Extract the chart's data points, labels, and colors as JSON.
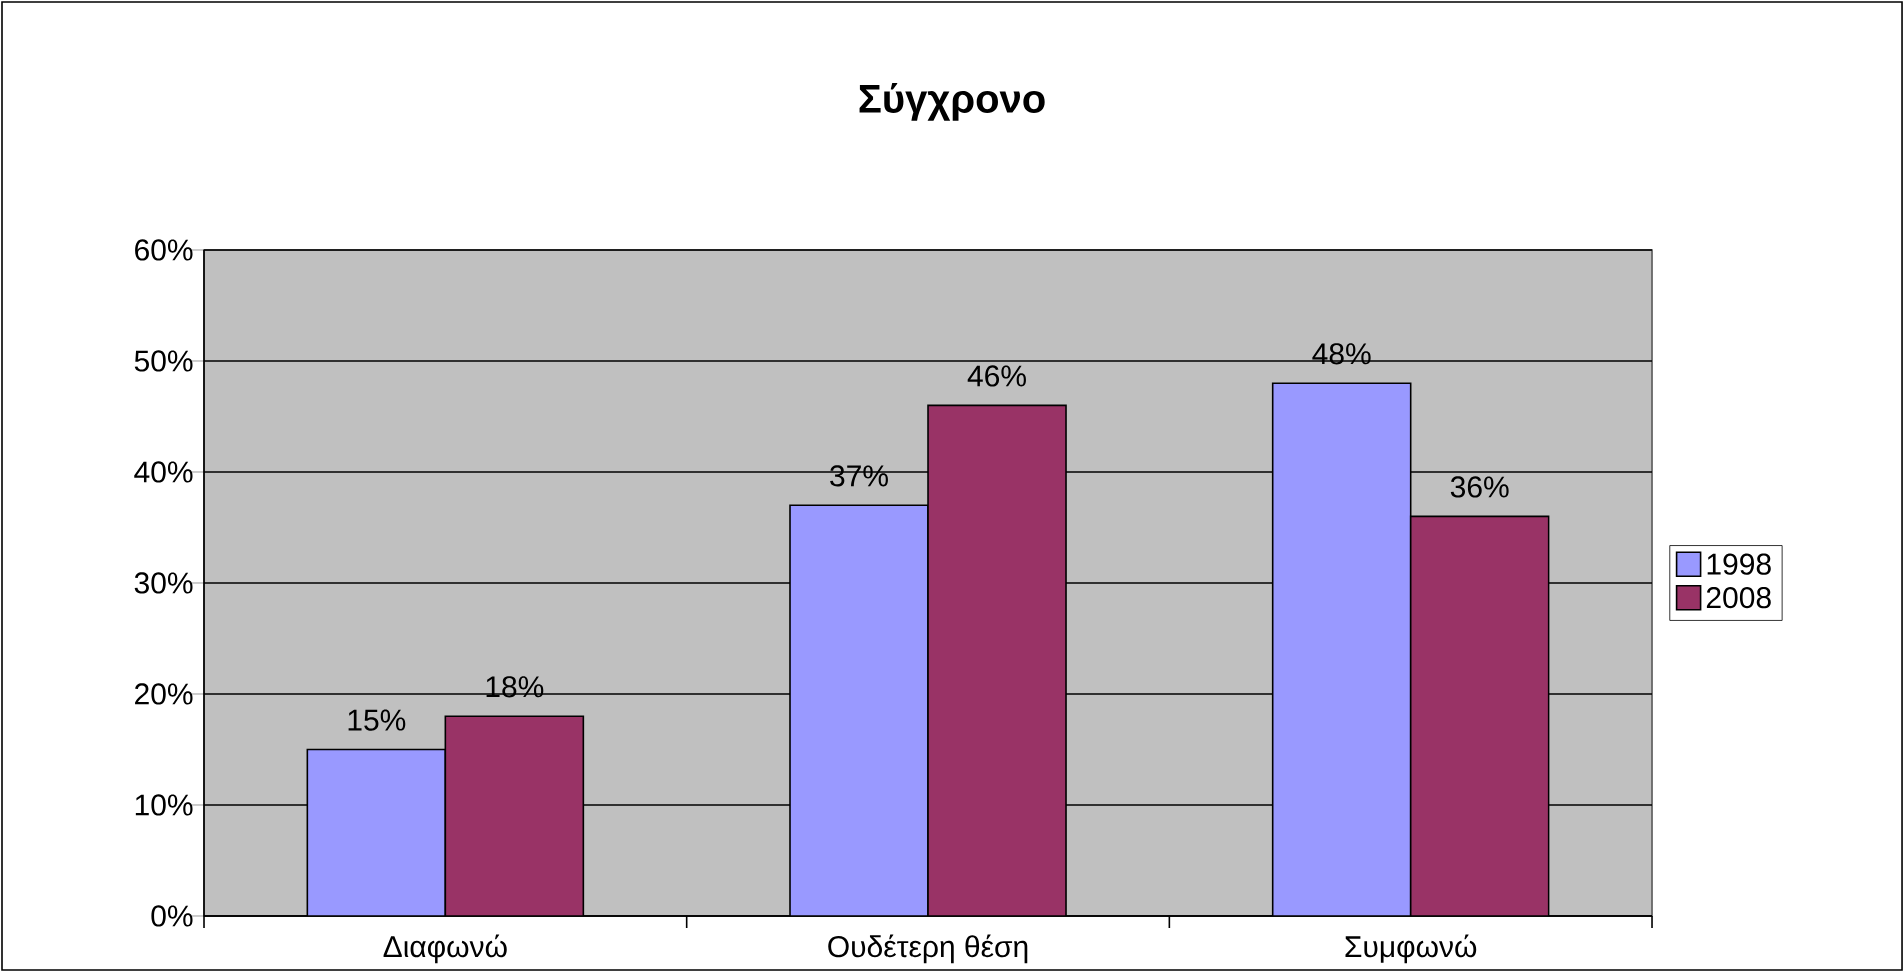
{
  "chart_data": {
    "type": "bar",
    "title": "Σύγχρονο",
    "categories": [
      "Διαφωνώ",
      "Ουδέτερη θέση",
      "Συμφωνώ"
    ],
    "series": [
      {
        "name": "1998",
        "color": "#9999ff",
        "values": [
          15,
          37,
          48
        ],
        "value_labels": [
          "15%",
          "37%",
          "48%"
        ]
      },
      {
        "name": "2008",
        "color": "#993366",
        "values": [
          18,
          46,
          36
        ],
        "value_labels": [
          "18%",
          "46%",
          "36%"
        ]
      }
    ],
    "ylim": [
      0,
      60
    ],
    "yticks": [
      {
        "value": 0,
        "label": "0%"
      },
      {
        "value": 10,
        "label": "10%"
      },
      {
        "value": 20,
        "label": "20%"
      },
      {
        "value": 30,
        "label": "30%"
      },
      {
        "value": 40,
        "label": "40%"
      },
      {
        "value": 50,
        "label": "50%"
      },
      {
        "value": 60,
        "label": "60%"
      }
    ],
    "grid": "y",
    "legend": "right"
  }
}
